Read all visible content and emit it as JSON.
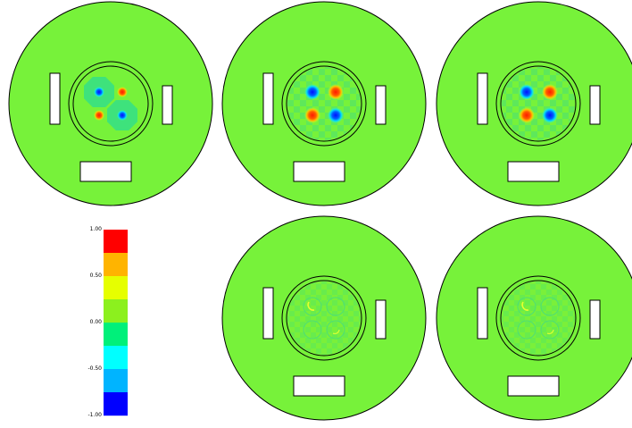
{
  "colors": {
    "background": "#ffffff",
    "base_field": "#77f23a",
    "outline": "#000000",
    "cut_fill": "#ffffff"
  },
  "panels": [
    {
      "id": "p1",
      "pattern": "flat-quadrants"
    },
    {
      "id": "p2",
      "pattern": "strong-checker"
    },
    {
      "id": "p3",
      "pattern": "strong-checker"
    },
    {
      "id": "p4",
      "pattern": "faint"
    },
    {
      "id": "p5",
      "pattern": "faint"
    }
  ],
  "colorbar": {
    "tick_labels": [
      "1.00",
      "0.50",
      "0.00",
      "-0.50",
      "-1.00"
    ],
    "bands": [
      "#ff0000",
      "#ffb400",
      "#e6ff00",
      "#8cf01e",
      "#00f07a",
      "#00ffff",
      "#00b4ff",
      "#0000ff"
    ]
  }
}
